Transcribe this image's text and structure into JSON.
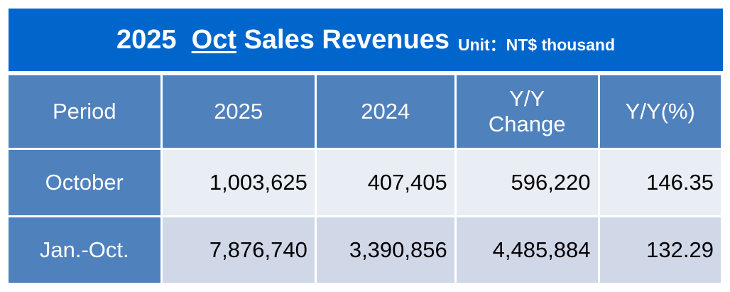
{
  "title": {
    "year": "2025",
    "month": "Oct",
    "text": "Sales Revenues",
    "unit": "Unit：NT$ thousand"
  },
  "headers": [
    "Period",
    "2025",
    "2024",
    "Y/Y\nChange",
    "Y/Y(%)"
  ],
  "rows": [
    {
      "period": "October",
      "y2025": "1,003,625",
      "y2024": "407,405",
      "change": "596,220",
      "pct": "146.35"
    },
    {
      "period": "Jan.-Oct.",
      "y2025": "7,876,740",
      "y2024": "3,390,856",
      "change": "4,485,884",
      "pct": "132.29"
    }
  ]
}
